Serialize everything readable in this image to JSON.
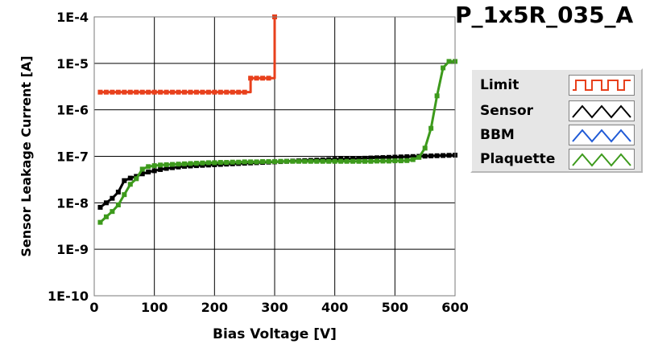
{
  "chart_data": {
    "type": "line",
    "title": "P_1x5R_035_A",
    "xlabel": "Bias Voltage [V]",
    "ylabel": "Sensor Leakage Current [A]",
    "xlim": [
      0,
      600
    ],
    "ylim": [
      1e-10,
      0.0001
    ],
    "yscale": "log",
    "grid": true,
    "legend_position": "right",
    "x_ticks": [
      "0",
      "100",
      "200",
      "300",
      "400",
      "500",
      "600"
    ],
    "y_ticks": [
      "1E-10",
      "1E-9",
      "1E-8",
      "1E-7",
      "1E-6",
      "1E-5",
      "1E-4"
    ],
    "series": [
      {
        "name": "Limit",
        "color": "#e8401c",
        "step": true,
        "x": [
          10,
          20,
          30,
          40,
          50,
          60,
          70,
          80,
          90,
          100,
          110,
          120,
          130,
          140,
          150,
          160,
          170,
          180,
          190,
          200,
          210,
          220,
          230,
          240,
          250,
          260,
          270,
          280,
          290,
          300
        ],
        "y": [
          2.4e-06,
          2.4e-06,
          2.4e-06,
          2.4e-06,
          2.4e-06,
          2.4e-06,
          2.4e-06,
          2.4e-06,
          2.4e-06,
          2.4e-06,
          2.4e-06,
          2.4e-06,
          2.4e-06,
          2.4e-06,
          2.4e-06,
          2.4e-06,
          2.4e-06,
          2.4e-06,
          2.4e-06,
          2.4e-06,
          2.4e-06,
          2.4e-06,
          2.4e-06,
          2.4e-06,
          2.4e-06,
          4.8e-06,
          4.8e-06,
          4.8e-06,
          4.8e-06,
          0.0001
        ]
      },
      {
        "name": "Sensor",
        "color": "#000000",
        "x": [
          10,
          20,
          30,
          40,
          50,
          60,
          70,
          80,
          90,
          100,
          110,
          120,
          130,
          140,
          150,
          160,
          170,
          180,
          190,
          200,
          210,
          220,
          230,
          240,
          250,
          260,
          270,
          280,
          290,
          300,
          310,
          320,
          330,
          340,
          350,
          360,
          370,
          380,
          390,
          400,
          410,
          420,
          430,
          440,
          450,
          460,
          470,
          480,
          490,
          500,
          510,
          520,
          530,
          540,
          550,
          560,
          570,
          580,
          590,
          600
        ],
        "y": [
          8e-09,
          1e-08,
          1.25e-08,
          1.7e-08,
          3e-08,
          3.4e-08,
          3.7e-08,
          4.2e-08,
          4.6e-08,
          4.9e-08,
          5.2e-08,
          5.5e-08,
          5.7e-08,
          5.9e-08,
          6.1e-08,
          6.2e-08,
          6.3e-08,
          6.4e-08,
          6.5e-08,
          6.6e-08,
          6.7e-08,
          6.8e-08,
          6.9e-08,
          7e-08,
          7.1e-08,
          7.2e-08,
          7.3e-08,
          7.4e-08,
          7.5e-08,
          7.6e-08,
          7.7e-08,
          7.8e-08,
          7.9e-08,
          8e-08,
          8.1e-08,
          8.2e-08,
          8.3e-08,
          8.4e-08,
          8.5e-08,
          8.6e-08,
          8.7e-08,
          8.8e-08,
          8.9e-08,
          9e-08,
          9.1e-08,
          9.2e-08,
          9.3e-08,
          9.4e-08,
          9.5e-08,
          9.6e-08,
          9.7e-08,
          9.8e-08,
          9.9e-08,
          1e-07,
          1.01e-07,
          1.02e-07,
          1.03e-07,
          1.04e-07,
          1.05e-07,
          1.06e-07
        ]
      },
      {
        "name": "BBM",
        "color": "#1f5ad6",
        "x": [],
        "y": []
      },
      {
        "name": "Plaquette",
        "color": "#3d9a1c",
        "x": [
          10,
          20,
          30,
          40,
          50,
          60,
          70,
          80,
          90,
          100,
          110,
          120,
          130,
          140,
          150,
          160,
          170,
          180,
          190,
          200,
          210,
          220,
          230,
          240,
          250,
          260,
          270,
          280,
          290,
          300,
          310,
          320,
          330,
          340,
          350,
          360,
          370,
          380,
          390,
          400,
          410,
          420,
          430,
          440,
          450,
          460,
          470,
          480,
          490,
          500,
          510,
          520,
          530,
          540,
          550,
          560,
          570,
          580,
          590,
          600
        ],
        "y": [
          3.8e-09,
          5e-09,
          6.5e-09,
          9e-09,
          1.5e-08,
          2.5e-08,
          3.3e-08,
          5.3e-08,
          6e-08,
          6.3e-08,
          6.5e-08,
          6.6e-08,
          6.7e-08,
          6.8e-08,
          6.9e-08,
          7e-08,
          7.1e-08,
          7.2e-08,
          7.3e-08,
          7.3e-08,
          7.4e-08,
          7.4e-08,
          7.5e-08,
          7.5e-08,
          7.6e-08,
          7.6e-08,
          7.6e-08,
          7.7e-08,
          7.7e-08,
          7.7e-08,
          7.8e-08,
          7.8e-08,
          7.8e-08,
          7.8e-08,
          7.8e-08,
          7.8e-08,
          7.8e-08,
          7.8e-08,
          7.8e-08,
          7.8e-08,
          7.8e-08,
          7.8e-08,
          7.8e-08,
          7.8e-08,
          7.8e-08,
          7.8e-08,
          7.9e-08,
          7.9e-08,
          7.9e-08,
          8e-08,
          8e-08,
          8.1e-08,
          8.5e-08,
          9.5e-08,
          1.5e-07,
          4e-07,
          2e-06,
          8e-06,
          1.1e-05,
          1.1e-05
        ]
      }
    ]
  }
}
